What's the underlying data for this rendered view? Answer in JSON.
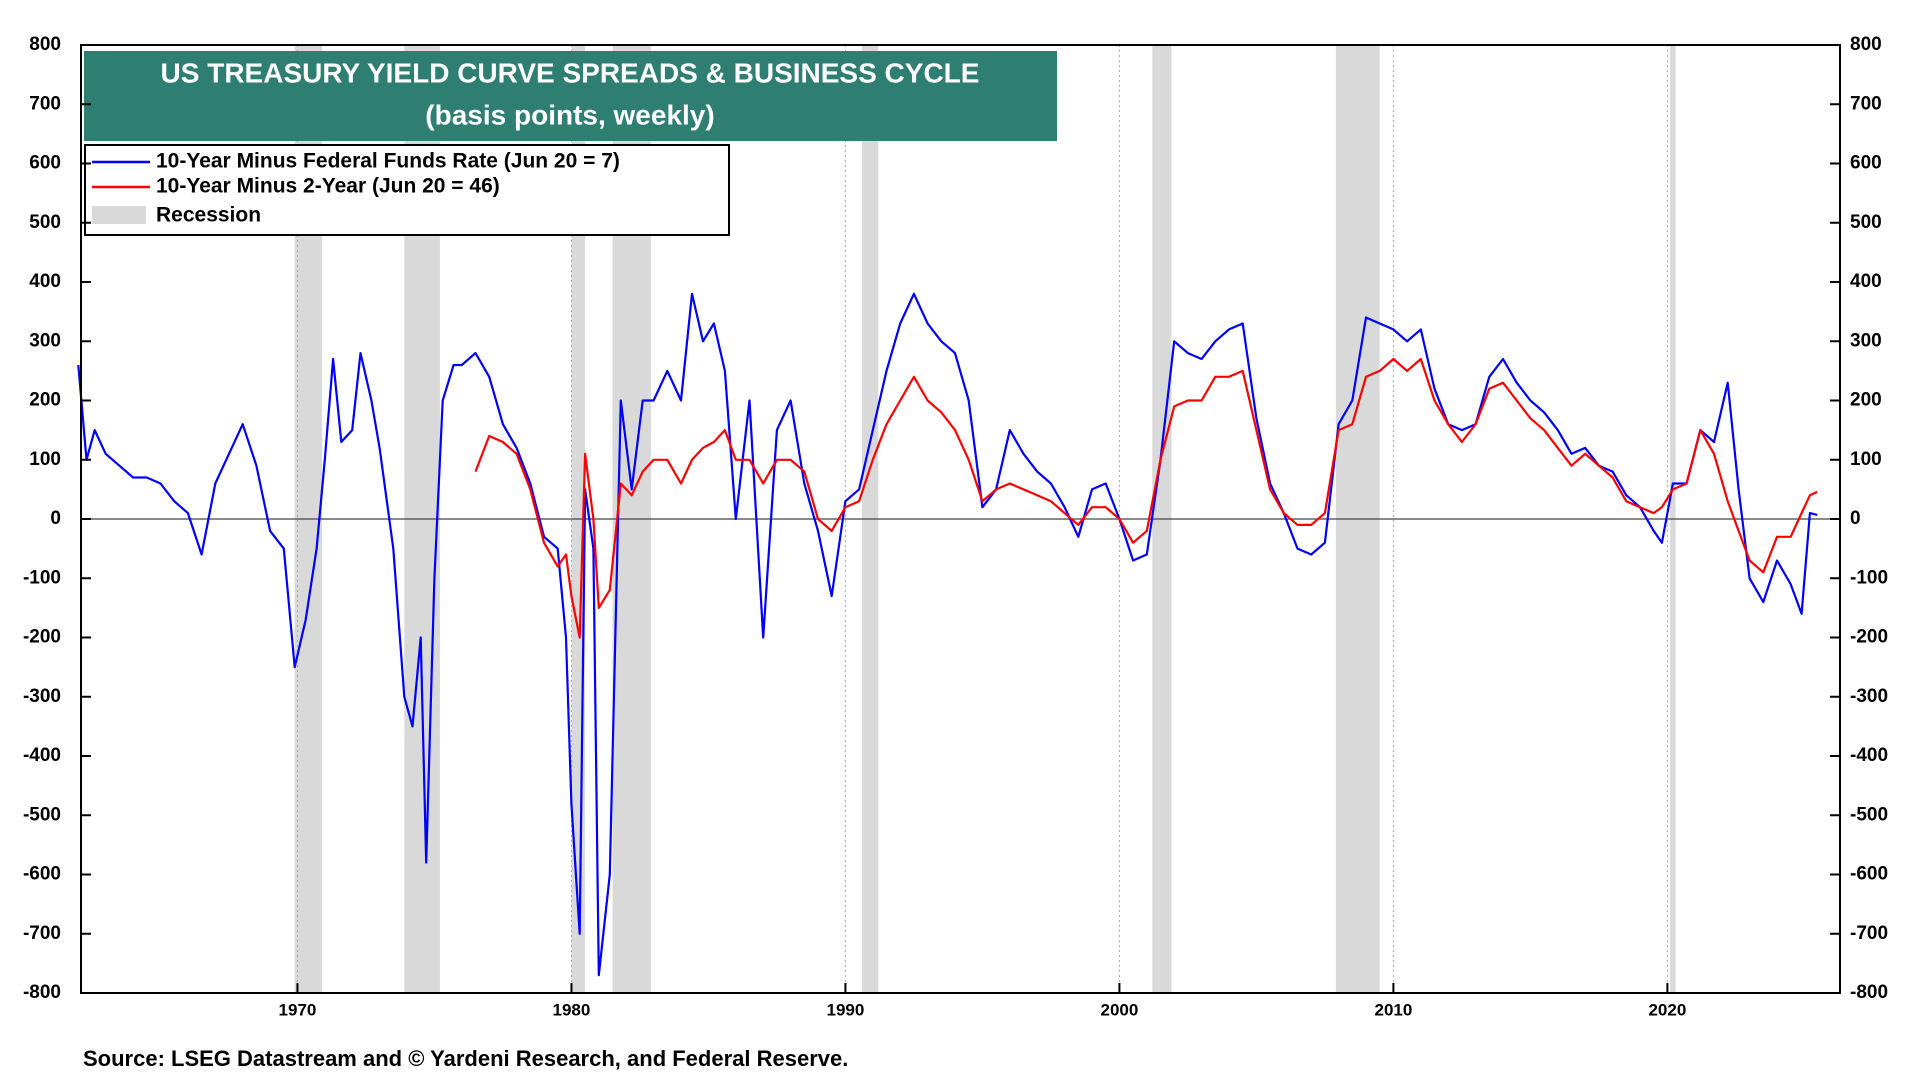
{
  "chart_data": {
    "type": "line",
    "title": "US TREASURY YIELD CURVE SPREADS & BUSINESS CYCLE",
    "subtitle": "(basis points, weekly)",
    "source": "Source: LSEG Datastream and © Yardeni Research, and Federal Reserve.",
    "recession_label": "Recession",
    "recession_color": "#d9d9d9",
    "recessions": [
      [
        1969.9,
        1970.9
      ],
      [
        1973.9,
        1975.2
      ],
      [
        1980.0,
        1980.5
      ],
      [
        1981.5,
        1982.9
      ],
      [
        1990.6,
        1991.2
      ],
      [
        2001.2,
        2001.9
      ],
      [
        2007.9,
        2009.5
      ],
      [
        2020.1,
        2020.3
      ]
    ],
    "xlim": [
      1962.1,
      2026.3
    ],
    "xticks": [
      1970,
      1980,
      1990,
      2000,
      2010,
      2020
    ],
    "ylim": [
      -800,
      800
    ],
    "yticks": [
      -800,
      -700,
      -600,
      -500,
      -400,
      -300,
      -200,
      -100,
      0,
      100,
      200,
      300,
      400,
      500,
      600,
      700,
      800
    ],
    "grid": true,
    "x": [
      1962.0,
      1962.3,
      1962.6,
      1963,
      1963.5,
      1964,
      1964.5,
      1965,
      1965.5,
      1966,
      1966.5,
      1967,
      1967.5,
      1968,
      1968.5,
      1969,
      1969.5,
      1969.9,
      1970.3,
      1970.7,
      1971,
      1971.3,
      1971.6,
      1972,
      1972.3,
      1972.7,
      1973,
      1973.5,
      1973.9,
      1974.2,
      1974.5,
      1974.7,
      1975,
      1975.3,
      1975.7,
      1976,
      1976.5,
      1977,
      1977.5,
      1978,
      1978.5,
      1979,
      1979.5,
      1979.8,
      1980.0,
      1980.3,
      1980.5,
      1980.8,
      1981.0,
      1981.4,
      1981.8,
      1982.2,
      1982.6,
      1983,
      1983.5,
      1984,
      1984.4,
      1984.8,
      1985.2,
      1985.6,
      1986,
      1986.5,
      1987,
      1987.5,
      1988,
      1988.5,
      1989,
      1989.5,
      1990,
      1990.5,
      1991,
      1991.5,
      1992,
      1992.5,
      1993,
      1993.5,
      1994,
      1994.5,
      1995,
      1995.5,
      1996,
      1996.5,
      1997,
      1997.5,
      1998,
      1998.5,
      1999,
      1999.5,
      2000,
      2000.5,
      2001,
      2001.5,
      2002,
      2002.5,
      2003,
      2003.5,
      2004,
      2004.5,
      2005,
      2005.5,
      2006,
      2006.5,
      2007,
      2007.5,
      2008,
      2008.5,
      2009,
      2009.5,
      2010,
      2010.5,
      2011,
      2011.5,
      2012,
      2012.5,
      2013,
      2013.5,
      2014,
      2014.5,
      2015,
      2015.5,
      2016,
      2016.5,
      2017,
      2017.5,
      2018,
      2018.5,
      2019,
      2019.5,
      2019.8,
      2020.2,
      2020.7,
      2021.2,
      2021.7,
      2022.2,
      2022.6,
      2023,
      2023.5,
      2024,
      2024.5,
      2024.9,
      2025.2,
      2025.47
    ],
    "series": [
      {
        "name": "10-Year Minus Federal Funds Rate (Jun 20 = 7)",
        "color": "#0000ff",
        "values": [
          260,
          100,
          150,
          110,
          90,
          70,
          70,
          60,
          30,
          10,
          -60,
          60,
          110,
          160,
          90,
          -20,
          -50,
          -250,
          -170,
          -50,
          100,
          270,
          130,
          150,
          280,
          200,
          120,
          -50,
          -300,
          -350,
          -200,
          -580,
          -100,
          200,
          260,
          260,
          280,
          240,
          160,
          120,
          60,
          -30,
          -50,
          -200,
          -480,
          -700,
          50,
          -50,
          -770,
          -600,
          200,
          50,
          200,
          200,
          250,
          200,
          380,
          300,
          330,
          250,
          0,
          200,
          -200,
          150,
          200,
          60,
          -20,
          -130,
          30,
          50,
          150,
          250,
          330,
          380,
          330,
          300,
          280,
          200,
          20,
          50,
          150,
          110,
          80,
          60,
          20,
          -30,
          50,
          60,
          0,
          -70,
          -60,
          100,
          300,
          280,
          270,
          300,
          320,
          330,
          170,
          60,
          10,
          -50,
          -60,
          -40,
          160,
          200,
          340,
          330,
          320,
          300,
          320,
          220,
          160,
          150,
          160,
          240,
          270,
          230,
          200,
          180,
          150,
          110,
          120,
          90,
          80,
          40,
          20,
          -20,
          -40,
          60,
          60,
          150,
          130,
          230,
          50,
          -100,
          -140,
          -70,
          -110,
          -160,
          10,
          7
        ]
      },
      {
        "name": "10-Year Minus 2-Year (Jun 20 = 46)",
        "color": "#ff0000",
        "values": [
          null,
          null,
          null,
          null,
          null,
          null,
          null,
          null,
          null,
          null,
          null,
          null,
          null,
          null,
          null,
          null,
          null,
          null,
          null,
          null,
          null,
          null,
          null,
          null,
          null,
          null,
          null,
          null,
          null,
          null,
          null,
          null,
          null,
          null,
          null,
          null,
          80,
          140,
          130,
          110,
          50,
          -40,
          -80,
          -60,
          -130,
          -200,
          110,
          0,
          -150,
          -120,
          60,
          40,
          80,
          100,
          100,
          60,
          100,
          120,
          130,
          150,
          100,
          100,
          60,
          100,
          100,
          80,
          0,
          -20,
          20,
          30,
          100,
          160,
          200,
          240,
          200,
          180,
          150,
          100,
          30,
          50,
          60,
          50,
          40,
          30,
          10,
          -10,
          20,
          20,
          0,
          -40,
          -20,
          100,
          190,
          200,
          200,
          240,
          240,
          250,
          150,
          50,
          10,
          -10,
          -10,
          10,
          150,
          160,
          240,
          250,
          270,
          250,
          270,
          200,
          160,
          130,
          160,
          220,
          230,
          200,
          170,
          150,
          120,
          90,
          110,
          90,
          70,
          30,
          20,
          10,
          20,
          50,
          60,
          150,
          110,
          30,
          -20,
          -70,
          -90,
          -30,
          -30,
          10,
          40,
          46
        ]
      }
    ]
  }
}
